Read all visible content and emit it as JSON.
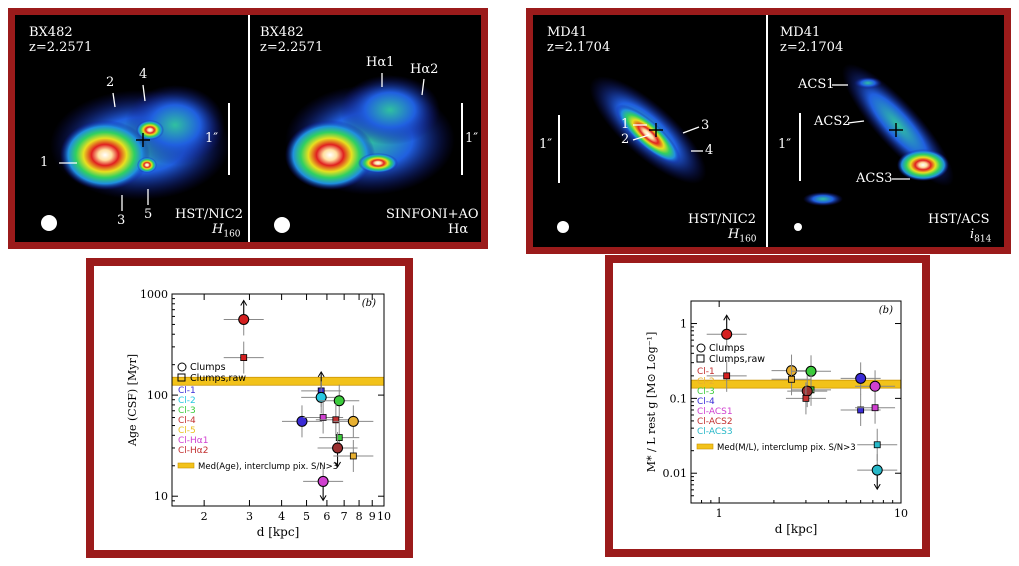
{
  "panels": {
    "bx_nic2": {
      "name": "BX482",
      "z": "z=2.2571",
      "instrument": "HST/NIC2",
      "filter": "H",
      "filter_sub": "160",
      "scale": "1″",
      "clumps": [
        "1",
        "2",
        "3",
        "4",
        "5"
      ]
    },
    "bx_sinfoni": {
      "name": "BX482",
      "z": "z=2.2571",
      "instrument": "SINFONI+AO",
      "filter": "Hα",
      "scale": "1″",
      "clumps": [
        "Hα1",
        "Hα2"
      ]
    },
    "md_nic2": {
      "name": "MD41",
      "z": "z=2.1704",
      "instrument": "HST/NIC2",
      "filter": "H",
      "filter_sub": "160",
      "scale": "1″",
      "clumps": [
        "1",
        "2",
        "3",
        "4"
      ]
    },
    "md_acs": {
      "name": "MD41",
      "z": "z=2.1704",
      "instrument": "HST/ACS",
      "filter": "i",
      "filter_sub": "814",
      "scale": "1″",
      "clumps": [
        "ACS1",
        "ACS2",
        "ACS3"
      ]
    }
  },
  "chart_data": [
    {
      "type": "scatter",
      "panel_label": "(b)",
      "xlabel": "d  [kpc]",
      "ylabel": "Age (CSF)  [Myr]",
      "xscale": "log",
      "yscale": "log",
      "xlim": [
        1.5,
        10
      ],
      "ylim": [
        8,
        1000
      ],
      "xticks": [
        "2",
        "3",
        "4",
        "5",
        "6",
        "7",
        "8",
        "9",
        "10"
      ],
      "yticks": [
        "10",
        "100",
        "1000"
      ],
      "median_band": {
        "y": 137,
        "label": "Med(Age), interclump pix. S/N>3"
      },
      "legend": {
        "circle": "Clumps",
        "square": "Clumps,raw",
        "entries": [
          {
            "label": "Cl-1",
            "color": "#3a2bd6"
          },
          {
            "label": "Cl-2",
            "color": "#28c8e0"
          },
          {
            "label": "Cl-3",
            "color": "#3ccc3c"
          },
          {
            "label": "Cl-4",
            "color": "#c23030"
          },
          {
            "label": "Cl-5",
            "color": "#e8c020"
          },
          {
            "label": "Cl-Hα1",
            "color": "#d040d0"
          },
          {
            "label": "Cl-Hα2",
            "color": "#c23030"
          }
        ]
      },
      "points": [
        {
          "x": 2.85,
          "y": 560,
          "marker": "circle",
          "color": "#d42020",
          "arrow": "up"
        },
        {
          "x": 2.85,
          "y": 235,
          "marker": "square",
          "color": "#d42020"
        },
        {
          "x": 5.7,
          "y": 110,
          "marker": "square",
          "color": "#3a2bd6",
          "arrow": "up"
        },
        {
          "x": 5.7,
          "y": 95,
          "marker": "circle",
          "color": "#28c8e0"
        },
        {
          "x": 6.7,
          "y": 88,
          "marker": "circle",
          "color": "#3ccc3c"
        },
        {
          "x": 4.8,
          "y": 55,
          "marker": "circle",
          "color": "#3a2bd6"
        },
        {
          "x": 5.8,
          "y": 60,
          "marker": "square",
          "color": "#d040d0"
        },
        {
          "x": 6.5,
          "y": 57,
          "marker": "square",
          "color": "#c23030"
        },
        {
          "x": 7.6,
          "y": 55,
          "marker": "circle",
          "color": "#e8b030"
        },
        {
          "x": 6.7,
          "y": 38,
          "marker": "square",
          "color": "#3ccc3c"
        },
        {
          "x": 6.6,
          "y": 30,
          "marker": "circle",
          "color": "#9b3030",
          "arrow": "down"
        },
        {
          "x": 7.6,
          "y": 25,
          "marker": "square",
          "color": "#e8b030"
        },
        {
          "x": 5.8,
          "y": 14,
          "marker": "circle",
          "color": "#d040d0",
          "arrow": "down"
        }
      ]
    },
    {
      "type": "scatter",
      "panel_label": "(b)",
      "xlabel": "d  [kpc]",
      "ylabel": "M* / L rest g  [M⊙ L⊙g⁻¹]",
      "xscale": "log",
      "yscale": "log",
      "xlim": [
        0.7,
        10
      ],
      "ylim": [
        0.004,
        2
      ],
      "xticks": [
        "1",
        "10"
      ],
      "yticks": [
        "0.01",
        "0.1",
        "1"
      ],
      "median_band": {
        "y": 0.155,
        "label": "Med(M/L), interclump pix. S/N>3"
      },
      "legend": {
        "circle": "Clumps",
        "square": "Clumps,raw",
        "entries": [
          {
            "label": "Cl-1",
            "color": "#c23030"
          },
          {
            "label": "Cl-2",
            "color": "#e8b030"
          },
          {
            "label": "Cl-3",
            "color": "#3ccc3c"
          },
          {
            "label": "Cl-4",
            "color": "#3a2bd6"
          },
          {
            "label": "Cl-ACS1",
            "color": "#d040d0"
          },
          {
            "label": "Cl-ACS2",
            "color": "#c23030"
          },
          {
            "label": "Cl-ACS3",
            "color": "#28b8c8"
          }
        ]
      },
      "points": [
        {
          "x": 1.1,
          "y": 0.72,
          "marker": "circle",
          "color": "#d42020",
          "arrow": "up"
        },
        {
          "x": 1.1,
          "y": 0.2,
          "marker": "square",
          "color": "#d42020"
        },
        {
          "x": 2.5,
          "y": 0.235,
          "marker": "circle",
          "color": "#e8b030"
        },
        {
          "x": 2.5,
          "y": 0.18,
          "marker": "square",
          "color": "#e8b030"
        },
        {
          "x": 3.2,
          "y": 0.23,
          "marker": "circle",
          "color": "#3ccc3c"
        },
        {
          "x": 3.2,
          "y": 0.13,
          "marker": "square",
          "color": "#3ccc3c"
        },
        {
          "x": 3.05,
          "y": 0.125,
          "marker": "circle",
          "color": "#9b3030"
        },
        {
          "x": 3.0,
          "y": 0.1,
          "marker": "square",
          "color": "#c23030"
        },
        {
          "x": 6.0,
          "y": 0.185,
          "marker": "circle",
          "color": "#3a2bd6"
        },
        {
          "x": 6.0,
          "y": 0.07,
          "marker": "square",
          "color": "#3a2bd6"
        },
        {
          "x": 7.2,
          "y": 0.145,
          "marker": "circle",
          "color": "#d040d0"
        },
        {
          "x": 7.2,
          "y": 0.075,
          "marker": "square",
          "color": "#d040d0"
        },
        {
          "x": 7.4,
          "y": 0.024,
          "marker": "square",
          "color": "#28b8c8"
        },
        {
          "x": 7.4,
          "y": 0.011,
          "marker": "circle",
          "color": "#28b8c8",
          "arrow": "down"
        }
      ]
    }
  ],
  "colors": {
    "frame": "#9b1b1b",
    "median_band": "#f2c21a"
  }
}
